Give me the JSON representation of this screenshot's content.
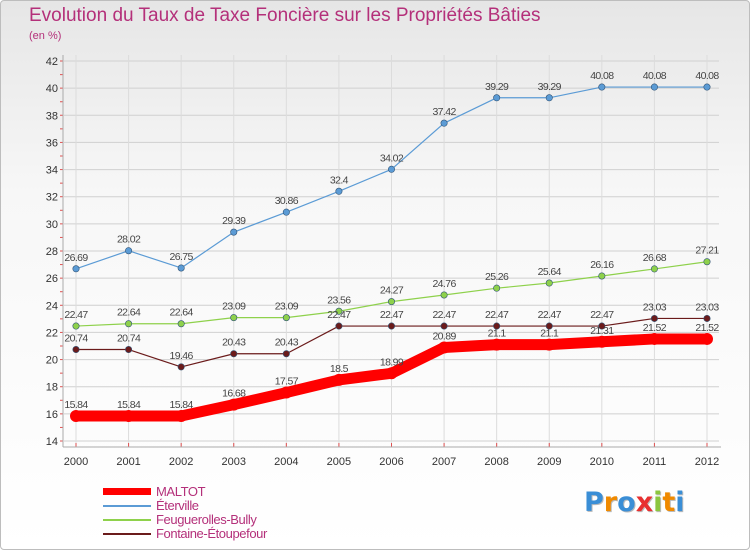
{
  "title": "Evolution du Taux de Taxe Foncière sur les Propriétés Bâties",
  "subtitle": "(en %)",
  "logo": {
    "letters": [
      "P",
      "r",
      "o",
      "x",
      "i",
      "t",
      "i"
    ],
    "colors": [
      "#3a8ed6",
      "#f08a00",
      "#3a8ed6",
      "#e83030",
      "#8cc63f",
      "#f08a00",
      "#3a8ed6"
    ]
  },
  "chart_data": {
    "type": "line",
    "title": "Evolution du Taux de Taxe Foncière sur les Propriétés Bâties",
    "ylabel": "(en %)",
    "x": [
      "2000",
      "2001",
      "2002",
      "2003",
      "2004",
      "2005",
      "2006",
      "2007",
      "2008",
      "2009",
      "2010",
      "2011",
      "2012"
    ],
    "ylim": [
      14,
      42
    ],
    "yticks": [
      "14",
      "16",
      "18",
      "20",
      "22",
      "24",
      "26",
      "28",
      "30",
      "32",
      "34",
      "36",
      "38",
      "40",
      "42"
    ],
    "grid": true,
    "legend_position": "bottom-left",
    "series": [
      {
        "name": "MALTOT",
        "color": "#ff0000",
        "values": [
          15.84,
          15.84,
          15.84,
          16.68,
          17.57,
          18.5,
          18.99,
          20.89,
          21.1,
          21.1,
          21.31,
          21.52,
          21.52
        ],
        "labels": [
          "15.84",
          "15.84",
          "15.84",
          "16.68",
          "17.57",
          "18.5",
          "18.99",
          "20.89",
          "21.1",
          "21.1",
          "21.31",
          "21.52",
          "21.52"
        ]
      },
      {
        "name": "Éterville",
        "color": "#5b9bd5",
        "values": [
          26.69,
          28.02,
          26.75,
          29.39,
          30.86,
          32.4,
          34.02,
          37.42,
          39.29,
          39.29,
          40.08,
          40.08,
          40.08
        ],
        "labels": [
          "26.69",
          "28.02",
          "26.75",
          "29.39",
          "30.86",
          "32.4",
          "34.02",
          "37.42",
          "39.29",
          "39.29",
          "40.08",
          "40.08",
          "40.08"
        ]
      },
      {
        "name": "Feuguerolles-Bully",
        "color": "#8ed14b",
        "values": [
          22.47,
          22.64,
          22.64,
          23.09,
          23.09,
          23.56,
          24.27,
          24.76,
          25.26,
          25.64,
          26.16,
          26.68,
          27.21
        ],
        "labels": [
          "22.47",
          "22.64",
          "22.64",
          "23.09",
          "23.09",
          "23.56",
          "24.27",
          "24.76",
          "25.26",
          "25.64",
          "26.16",
          "26.68",
          "27.21"
        ]
      },
      {
        "name": "Fontaine-Étoupefour",
        "color": "#6b1b1b",
        "values": [
          20.74,
          20.74,
          19.46,
          20.43,
          20.43,
          22.47,
          22.47,
          22.47,
          22.47,
          22.47,
          22.47,
          23.03,
          23.03
        ],
        "labels": [
          "20.74",
          "20.74",
          "19.46",
          "20.43",
          "20.43",
          "22.47",
          "22.47",
          "22.47",
          "22.47",
          "22.47",
          "22.47",
          "23.03",
          "23.03"
        ]
      }
    ]
  }
}
